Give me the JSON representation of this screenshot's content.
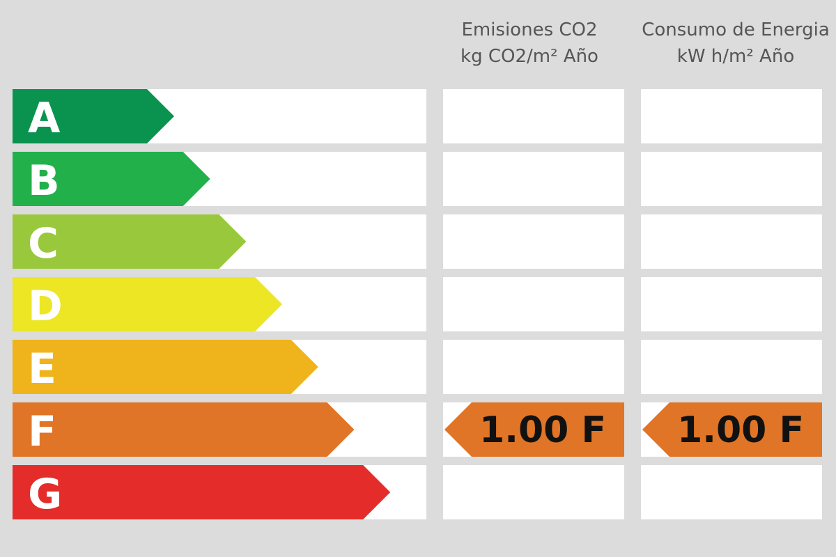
{
  "chart_data": {
    "type": "bar",
    "title": "",
    "categories": [
      "A",
      "B",
      "C",
      "D",
      "E",
      "F",
      "G"
    ],
    "colors": [
      "#0a934e",
      "#22b04b",
      "#9ac83d",
      "#ece624",
      "#efb41c",
      "#e07527",
      "#e42c2a"
    ],
    "columns": [
      {
        "header_line1": "Emisiones CO2",
        "header_line2": "kg CO2/m² Año",
        "rating": "F",
        "value": "1.00 F"
      },
      {
        "header_line1": "Consumo de Energia",
        "header_line2": "kW h/m² Año",
        "rating": "F",
        "value": "1.00 F"
      }
    ]
  }
}
